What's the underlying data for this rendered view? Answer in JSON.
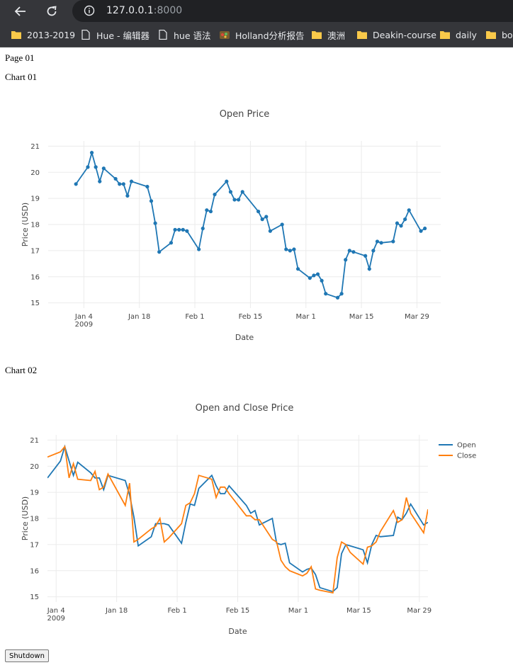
{
  "browser": {
    "url_host": "127.0.0.1",
    "url_port": ":8000",
    "bookmarks": [
      {
        "label": "2013-2019",
        "icon": "folder-icon"
      },
      {
        "label": "Hue - 编辑器",
        "icon": "document-icon"
      },
      {
        "label": "hue 语法",
        "icon": "document-icon"
      },
      {
        "label": "Holland分析报告",
        "icon": "app-icon"
      },
      {
        "label": "澳洲",
        "icon": "folder-icon"
      },
      {
        "label": "Deakin-course",
        "icon": "folder-icon"
      },
      {
        "label": "daily",
        "icon": "folder-icon"
      },
      {
        "label": "bo",
        "icon": "folder-icon"
      }
    ]
  },
  "page": {
    "title": "Page 01",
    "chart1_label": "Chart 01",
    "chart2_label": "Chart 02",
    "shutdown_label": "Shutdown"
  },
  "colors": {
    "open": "#1f77b4",
    "close": "#ff7f0e"
  },
  "chart_data": [
    {
      "type": "line",
      "title": "Open Price",
      "xlabel": "Date",
      "ylabel": "Price (USD)",
      "mode": "lines+markers",
      "grid": true,
      "x_ticks": [
        [
          "Jan 4",
          "2009"
        ],
        [
          "Jan 18"
        ],
        [
          "Feb 1"
        ],
        [
          "Feb 15"
        ],
        [
          "Mar 1"
        ],
        [
          "Mar 15"
        ],
        [
          "Mar 29"
        ]
      ],
      "y_ticks": [
        "15",
        "16",
        "17",
        "18",
        "19",
        "20",
        "21"
      ],
      "ylim": [
        14.8,
        21.2
      ],
      "x": [
        "2009-01-02",
        "2009-01-05",
        "2009-01-06",
        "2009-01-07",
        "2009-01-08",
        "2009-01-09",
        "2009-01-12",
        "2009-01-13",
        "2009-01-14",
        "2009-01-15",
        "2009-01-16",
        "2009-01-20",
        "2009-01-21",
        "2009-01-22",
        "2009-01-23",
        "2009-01-26",
        "2009-01-27",
        "2009-01-28",
        "2009-01-29",
        "2009-01-30",
        "2009-02-02",
        "2009-02-03",
        "2009-02-04",
        "2009-02-05",
        "2009-02-06",
        "2009-02-09",
        "2009-02-10",
        "2009-02-11",
        "2009-02-12",
        "2009-02-13",
        "2009-02-17",
        "2009-02-18",
        "2009-02-19",
        "2009-02-20",
        "2009-02-23",
        "2009-02-24",
        "2009-02-25",
        "2009-02-26",
        "2009-02-27",
        "2009-03-02",
        "2009-03-03",
        "2009-03-04",
        "2009-03-05",
        "2009-03-06",
        "2009-03-09",
        "2009-03-10",
        "2009-03-11",
        "2009-03-12",
        "2009-03-13",
        "2009-03-16",
        "2009-03-17",
        "2009-03-18",
        "2009-03-19",
        "2009-03-20",
        "2009-03-23",
        "2009-03-24",
        "2009-03-25",
        "2009-03-26",
        "2009-03-27",
        "2009-03-30",
        "2009-03-31"
      ],
      "series": [
        {
          "name": "Open",
          "values": [
            19.55,
            20.2,
            20.75,
            20.2,
            19.65,
            20.15,
            19.75,
            19.55,
            19.55,
            19.1,
            19.65,
            19.45,
            18.9,
            18.05,
            16.95,
            17.3,
            17.8,
            17.8,
            17.8,
            17.75,
            17.05,
            17.85,
            18.55,
            18.5,
            19.15,
            19.65,
            19.25,
            18.95,
            18.95,
            19.25,
            18.5,
            18.2,
            18.3,
            17.75,
            18.0,
            17.05,
            17.0,
            17.05,
            16.3,
            15.95,
            16.05,
            16.1,
            15.85,
            15.35,
            15.2,
            15.35,
            16.65,
            17.0,
            16.95,
            16.8,
            16.3,
            17.0,
            17.35,
            17.3,
            17.35,
            18.05,
            17.95,
            18.2,
            18.55,
            17.75,
            17.85
          ]
        }
      ]
    },
    {
      "type": "line",
      "title": "Open and Close Price",
      "xlabel": "Date",
      "ylabel": "Price (USD)",
      "mode": "lines",
      "grid": true,
      "legend": "top-right",
      "x_ticks": [
        [
          "Jan 4",
          "2009"
        ],
        [
          "Jan 18"
        ],
        [
          "Feb 1"
        ],
        [
          "Feb 15"
        ],
        [
          "Mar 1"
        ],
        [
          "Mar 15"
        ],
        [
          "Mar 29"
        ]
      ],
      "y_ticks": [
        "15",
        "16",
        "17",
        "18",
        "19",
        "20",
        "21"
      ],
      "ylim": [
        14.8,
        21.2
      ],
      "x": [
        "2009-01-02",
        "2009-01-05",
        "2009-01-06",
        "2009-01-07",
        "2009-01-08",
        "2009-01-09",
        "2009-01-12",
        "2009-01-13",
        "2009-01-14",
        "2009-01-15",
        "2009-01-16",
        "2009-01-20",
        "2009-01-21",
        "2009-01-22",
        "2009-01-23",
        "2009-01-26",
        "2009-01-27",
        "2009-01-28",
        "2009-01-29",
        "2009-01-30",
        "2009-02-02",
        "2009-02-03",
        "2009-02-04",
        "2009-02-05",
        "2009-02-06",
        "2009-02-09",
        "2009-02-10",
        "2009-02-11",
        "2009-02-12",
        "2009-02-13",
        "2009-02-17",
        "2009-02-18",
        "2009-02-19",
        "2009-02-20",
        "2009-02-23",
        "2009-02-24",
        "2009-02-25",
        "2009-02-26",
        "2009-02-27",
        "2009-03-02",
        "2009-03-03",
        "2009-03-04",
        "2009-03-05",
        "2009-03-06",
        "2009-03-09",
        "2009-03-10",
        "2009-03-11",
        "2009-03-12",
        "2009-03-13",
        "2009-03-16",
        "2009-03-17",
        "2009-03-18",
        "2009-03-19",
        "2009-03-20",
        "2009-03-23",
        "2009-03-24",
        "2009-03-25",
        "2009-03-26",
        "2009-03-27",
        "2009-03-30",
        "2009-03-31"
      ],
      "series": [
        {
          "name": "Open",
          "values": [
            19.55,
            20.2,
            20.75,
            20.2,
            19.65,
            20.15,
            19.75,
            19.55,
            19.55,
            19.1,
            19.65,
            19.45,
            18.9,
            18.05,
            16.95,
            17.3,
            17.8,
            17.8,
            17.8,
            17.75,
            17.05,
            17.85,
            18.55,
            18.5,
            19.15,
            19.65,
            19.25,
            18.95,
            18.95,
            19.25,
            18.5,
            18.2,
            18.3,
            17.75,
            18.0,
            17.05,
            17.0,
            17.05,
            16.3,
            15.95,
            16.05,
            16.1,
            15.85,
            15.35,
            15.2,
            15.35,
            16.65,
            17.0,
            16.95,
            16.8,
            16.3,
            17.0,
            17.35,
            17.3,
            17.35,
            18.05,
            17.95,
            18.2,
            18.55,
            17.75,
            17.85
          ]
        },
        {
          "name": "Close",
          "values": [
            20.35,
            20.55,
            20.75,
            19.55,
            20.1,
            19.5,
            19.45,
            19.8,
            19.1,
            19.2,
            19.7,
            18.5,
            19.35,
            17.1,
            17.2,
            17.6,
            17.7,
            18.0,
            17.1,
            17.25,
            17.8,
            18.5,
            18.6,
            18.95,
            19.65,
            19.5,
            18.8,
            19.2,
            19.2,
            18.95,
            18.1,
            18.1,
            17.95,
            17.95,
            17.2,
            17.1,
            16.4,
            16.15,
            16.0,
            15.8,
            15.9,
            16.15,
            15.3,
            15.25,
            15.15,
            16.5,
            17.1,
            17.0,
            16.7,
            16.25,
            16.9,
            16.95,
            17.1,
            17.5,
            18.3,
            17.85,
            17.95,
            18.8,
            18.2,
            17.45,
            18.35
          ]
        }
      ]
    }
  ]
}
